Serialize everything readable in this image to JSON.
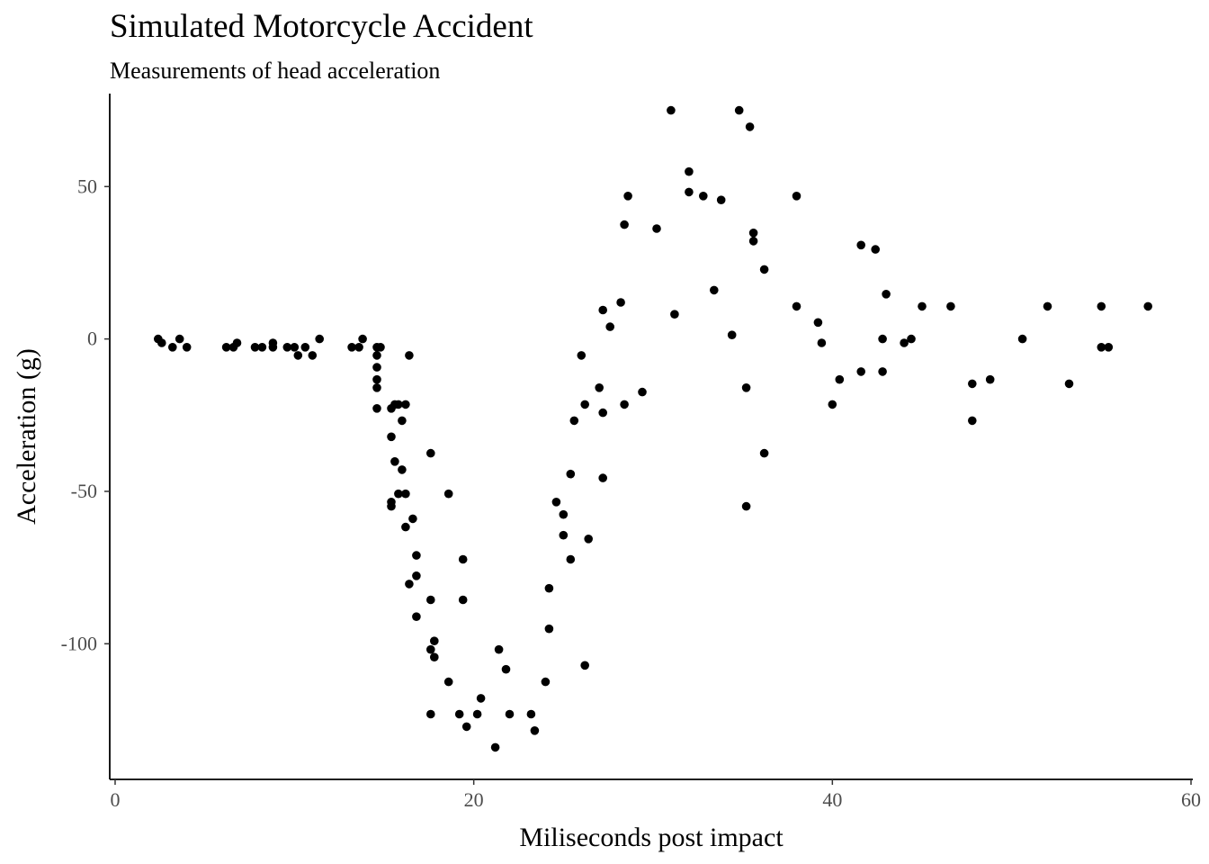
{
  "chart_data": {
    "type": "scatter",
    "title": "Simulated Motorcycle Accident",
    "subtitle": "Measurements of head acceleration",
    "xlabel": "Miliseconds post impact",
    "ylabel": "Acceleration (g)",
    "xlim": [
      -0.3,
      60.1
    ],
    "ylim": [
      -144.5,
      80.5
    ],
    "xticks": [
      0,
      20,
      40,
      60
    ],
    "xtick_labels": [
      "0",
      "20",
      "40",
      "60"
    ],
    "yticks": [
      50,
      0,
      -50,
      -100
    ],
    "ytick_labels": [
      "50",
      "0",
      "-50",
      "-100"
    ],
    "grid": false,
    "legend": "none",
    "point_color": "#000000",
    "series": [
      {
        "points": [
          [
            2.4,
            0.0
          ],
          [
            2.6,
            -1.3
          ],
          [
            3.2,
            -2.7
          ],
          [
            3.6,
            0.0
          ],
          [
            4.0,
            -2.7
          ],
          [
            6.2,
            -2.7
          ],
          [
            6.6,
            -2.7
          ],
          [
            6.8,
            -1.3
          ],
          [
            7.8,
            -2.7
          ],
          [
            8.2,
            -2.7
          ],
          [
            8.8,
            -1.3
          ],
          [
            8.8,
            -2.7
          ],
          [
            9.6,
            -2.7
          ],
          [
            10.0,
            -2.7
          ],
          [
            10.2,
            -5.4
          ],
          [
            10.6,
            -2.7
          ],
          [
            11.0,
            -5.4
          ],
          [
            11.4,
            0.0
          ],
          [
            13.2,
            -2.7
          ],
          [
            13.6,
            -2.7
          ],
          [
            13.8,
            0.0
          ],
          [
            14.6,
            -13.3
          ],
          [
            14.6,
            -2.7
          ],
          [
            14.6,
            -22.8
          ],
          [
            14.6,
            -5.4
          ],
          [
            14.6,
            -9.3
          ],
          [
            14.6,
            -16.0
          ],
          [
            14.8,
            -2.7
          ],
          [
            15.4,
            -22.8
          ],
          [
            15.4,
            -32.1
          ],
          [
            15.4,
            -53.5
          ],
          [
            15.4,
            -54.9
          ],
          [
            15.6,
            -40.2
          ],
          [
            15.6,
            -21.5
          ],
          [
            15.8,
            -21.5
          ],
          [
            15.8,
            -50.8
          ],
          [
            16.0,
            -42.9
          ],
          [
            16.0,
            -26.8
          ],
          [
            16.2,
            -21.5
          ],
          [
            16.2,
            -50.8
          ],
          [
            16.2,
            -61.7
          ],
          [
            16.4,
            -5.4
          ],
          [
            16.4,
            -80.4
          ],
          [
            16.6,
            -59.0
          ],
          [
            16.8,
            -71.0
          ],
          [
            16.8,
            -91.1
          ],
          [
            16.8,
            -77.7
          ],
          [
            17.6,
            -37.5
          ],
          [
            17.6,
            -85.6
          ],
          [
            17.6,
            -123.1
          ],
          [
            17.6,
            -101.9
          ],
          [
            17.8,
            -99.1
          ],
          [
            17.8,
            -104.4
          ],
          [
            18.6,
            -112.5
          ],
          [
            18.6,
            -50.8
          ],
          [
            19.2,
            -123.1
          ],
          [
            19.4,
            -85.6
          ],
          [
            19.4,
            -72.3
          ],
          [
            19.6,
            -127.2
          ],
          [
            20.2,
            -123.1
          ],
          [
            20.4,
            -117.9
          ],
          [
            21.2,
            -134.0
          ],
          [
            21.4,
            -101.9
          ],
          [
            21.8,
            -108.4
          ],
          [
            22.0,
            -123.1
          ],
          [
            23.2,
            -123.1
          ],
          [
            23.4,
            -128.5
          ],
          [
            24.0,
            -112.5
          ],
          [
            24.2,
            -95.1
          ],
          [
            24.2,
            -81.8
          ],
          [
            24.6,
            -53.5
          ],
          [
            25.0,
            -64.4
          ],
          [
            25.0,
            -57.6
          ],
          [
            25.4,
            -72.3
          ],
          [
            25.4,
            -44.3
          ],
          [
            25.6,
            -26.8
          ],
          [
            26.0,
            -5.4
          ],
          [
            26.2,
            -107.1
          ],
          [
            26.2,
            -21.5
          ],
          [
            26.4,
            -65.6
          ],
          [
            27.0,
            -16.0
          ],
          [
            27.2,
            -45.6
          ],
          [
            27.2,
            -24.2
          ],
          [
            27.2,
            9.5
          ],
          [
            27.6,
            4.0
          ],
          [
            28.2,
            12.0
          ],
          [
            28.4,
            -21.5
          ],
          [
            28.4,
            37.5
          ],
          [
            28.6,
            46.9
          ],
          [
            29.4,
            -17.4
          ],
          [
            30.2,
            36.2
          ],
          [
            31.0,
            75.0
          ],
          [
            31.2,
            8.1
          ],
          [
            32.0,
            54.9
          ],
          [
            32.0,
            48.2
          ],
          [
            32.8,
            46.9
          ],
          [
            33.4,
            16.0
          ],
          [
            33.8,
            45.6
          ],
          [
            34.4,
            1.3
          ],
          [
            34.8,
            75.0
          ],
          [
            35.2,
            -16.0
          ],
          [
            35.2,
            -54.9
          ],
          [
            35.4,
            69.6
          ],
          [
            35.6,
            34.8
          ],
          [
            35.6,
            32.1
          ],
          [
            36.2,
            -37.5
          ],
          [
            36.2,
            22.8
          ],
          [
            38.0,
            46.9
          ],
          [
            38.0,
            10.7
          ],
          [
            39.2,
            5.4
          ],
          [
            39.4,
            -1.3
          ],
          [
            40.0,
            -21.5
          ],
          [
            40.4,
            -13.3
          ],
          [
            41.6,
            30.8
          ],
          [
            41.6,
            -10.7
          ],
          [
            42.4,
            29.4
          ],
          [
            42.8,
            0.0
          ],
          [
            42.8,
            -10.7
          ],
          [
            43.0,
            14.7
          ],
          [
            44.0,
            -1.3
          ],
          [
            44.4,
            0.0
          ],
          [
            45.0,
            10.7
          ],
          [
            46.6,
            10.7
          ],
          [
            47.8,
            -26.8
          ],
          [
            47.8,
            -14.7
          ],
          [
            48.8,
            -13.3
          ],
          [
            50.6,
            0.0
          ],
          [
            52.0,
            10.7
          ],
          [
            53.2,
            -14.7
          ],
          [
            55.0,
            -2.7
          ],
          [
            55.0,
            10.7
          ],
          [
            55.4,
            -2.7
          ],
          [
            57.6,
            10.7
          ]
        ]
      }
    ]
  }
}
